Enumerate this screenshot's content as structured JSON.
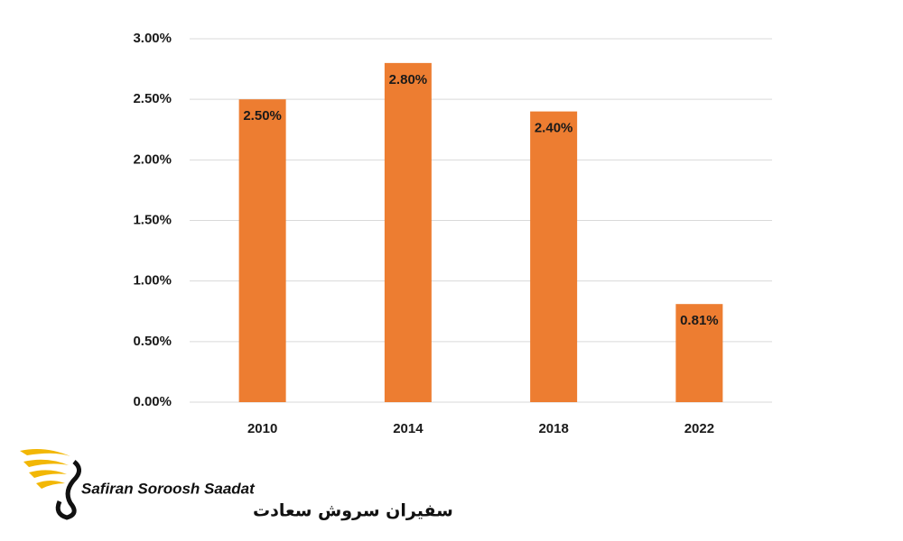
{
  "chart_data": {
    "type": "bar",
    "categories": [
      "2010",
      "2014",
      "2018",
      "2022"
    ],
    "values": [
      2.5,
      2.8,
      2.4,
      0.81
    ],
    "value_labels": [
      "2.50%",
      "2.80%",
      "2.40%",
      "0.81%"
    ],
    "color": "#ed7d31",
    "ylim": [
      0,
      3
    ],
    "yticks": [
      {
        "value": 0,
        "label": "0.00%"
      },
      {
        "value": 0.5,
        "label": "0.50%"
      },
      {
        "value": 1,
        "label": "1.00%"
      },
      {
        "value": 1.5,
        "label": "1.50%"
      },
      {
        "value": 2,
        "label": "2.00%"
      },
      {
        "value": 2.5,
        "label": "2.50%"
      },
      {
        "value": 3,
        "label": "3.00%"
      }
    ],
    "grid": true
  },
  "logo": {
    "name": "Safiran Soroosh Saadat",
    "name_fa": "سفیران سروش سعادت"
  }
}
